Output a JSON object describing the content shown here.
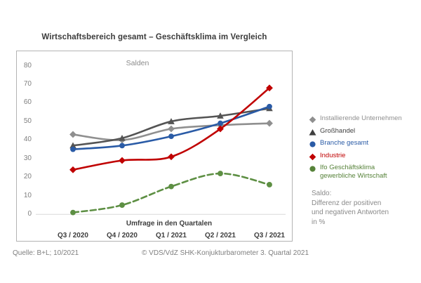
{
  "title": "Wirtschaftsbereich gesamt – Geschäftsklima im Vergleich",
  "chart_data": {
    "type": "line",
    "title": "Wirtschaftsbereich gesamt – Geschäftsklima im Vergleich",
    "inner_label": "Salden",
    "xlabel": "Umfrage in den Quartalen",
    "ylabel": "Salden",
    "ylim": [
      0,
      80
    ],
    "yticks": [
      0,
      10,
      20,
      30,
      40,
      50,
      60,
      70,
      80
    ],
    "grid": false,
    "legend_position": "right",
    "categories": [
      "Q3 / 2020",
      "Q4 / 2020",
      "Q1 / 2021",
      "Q2 / 2021",
      "Q3 / 2021"
    ],
    "series": [
      {
        "name": "Installierende Unternehmen",
        "values": [
          43,
          40,
          46,
          48,
          49
        ],
        "color": "#8f8f8f",
        "marker": "diamond",
        "line": "solid"
      },
      {
        "name": "Großhandel",
        "values": [
          37,
          41,
          50,
          53,
          57
        ],
        "color": "#545454",
        "marker": "triangle",
        "line": "solid"
      },
      {
        "name": "Branche gesamt",
        "values": [
          35,
          37,
          42,
          49,
          58
        ],
        "color": "#2a5ba6",
        "marker": "circle",
        "line": "solid"
      },
      {
        "name": "Industrie",
        "values": [
          24,
          29,
          31,
          46,
          68
        ],
        "color": "#c00000",
        "marker": "diamond",
        "line": "solid"
      },
      {
        "name": "Ifo Geschäftsklima gewerbliche Wirtschaft",
        "values": [
          1,
          5,
          15,
          22,
          16
        ],
        "color": "#5d8f43",
        "marker": "circle",
        "line": "dashed"
      }
    ]
  },
  "legend": {
    "items": [
      {
        "label": "Installierende Unternehmen",
        "label2": "",
        "color": "#8f8f8f",
        "marker": "diamond"
      },
      {
        "label": "Großhandel",
        "label2": "",
        "color": "#3f3f3f",
        "marker": "triangle"
      },
      {
        "label": "Branche gesamt",
        "label2": "",
        "color": "#2a5ba6",
        "marker": "circle"
      },
      {
        "label": "Industrie",
        "label2": "",
        "color": "#c00000",
        "marker": "diamond"
      },
      {
        "label": "Ifo Geschäftsklima",
        "label2": "gewerbliche Wirtschaft",
        "color": "#568239",
        "marker": "circle"
      }
    ],
    "note_lines": [
      "Saldo:",
      "Differenz der positiven",
      "und negativen Antworten",
      "in %"
    ]
  },
  "footer": {
    "source": "Quelle: B+L; 10/2021",
    "copyright": "© VDS/VdZ SHK-Konjukturbarometer 3. Quartal 2021"
  }
}
